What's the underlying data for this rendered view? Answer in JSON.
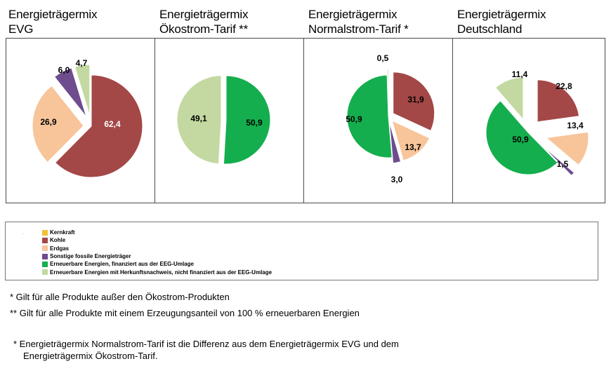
{
  "colors": {
    "Kernkraft": "#f1c232",
    "Kohle": "#a44747",
    "Erdgas": "#f8c49a",
    "Sonstige": "#6e4c8e",
    "EEG": "#14ae4e",
    "Herkunft": "#c3d9a1"
  },
  "legend": [
    {
      "key": "Kernkraft",
      "label": "Kernkraft"
    },
    {
      "key": "Kohle",
      "label": "Kohle"
    },
    {
      "key": "Erdgas",
      "label": "Erdgas"
    },
    {
      "key": "Sonstige",
      "label": "Sonstige fossile Energieträger"
    },
    {
      "key": "EEG",
      "label": "Erneuerbare Energien, finanziert aus der EEG-Umlage"
    },
    {
      "key": "Herkunft",
      "label": "Erneuerbare Energien mit Herkunftsnachweis, nicht finanziert aus der EEG-Umlage"
    }
  ],
  "legend_mark": ".",
  "notes": {
    "n1": "* Gilt für alle Produkte außer den Ökostrom-Produkten",
    "n2": "** Gilt für alle Produkte mit einem Erzeugungsanteil von 100 % erneuerbaren Energien",
    "n3a": "* Energieträgermix Normalstrom-Tarif ist die Differenz aus dem Energieträgermix  EVG und dem",
    "n3b": "Energieträgermix Ökostrom-Tarif."
  },
  "chart_data": [
    {
      "type": "pie",
      "title_line1": "Energieträgermix",
      "title_line2": "EVG",
      "slices": [
        {
          "key": "Kohle",
          "value": 62.4,
          "label": "62,4"
        },
        {
          "key": "Erdgas",
          "value": 26.9,
          "label": "26,9"
        },
        {
          "key": "Sonstige",
          "value": 6.0,
          "label": "6,0"
        },
        {
          "key": "Herkunft",
          "value": 4.7,
          "label": "4,7"
        }
      ]
    },
    {
      "type": "pie",
      "title_line1": "Energieträgermix",
      "title_line2": "Ökostrom-Tarif **",
      "slices": [
        {
          "key": "EEG",
          "value": 50.9,
          "label": "50,9"
        },
        {
          "key": "Herkunft",
          "value": 49.1,
          "label": "49,1"
        }
      ]
    },
    {
      "type": "pie",
      "title_line1": "Energieträgermix",
      "title_line2": "Normalstrom-Tarif *",
      "slices": [
        {
          "key": "Kohle",
          "value": 31.9,
          "label": "31,9"
        },
        {
          "key": "Erdgas",
          "value": 13.7,
          "label": "13,7"
        },
        {
          "key": "Sonstige",
          "value": 3.0,
          "label": "3,0"
        },
        {
          "key": "EEG",
          "value": 50.9,
          "label": "50,9"
        },
        {
          "key": "Herkunft",
          "value": 0.5,
          "label": "0,5"
        }
      ]
    },
    {
      "type": "pie",
      "title_line1": "Energieträgermix",
      "title_line2": "Deutschland",
      "slices": [
        {
          "key": "Kohle",
          "value": 22.8,
          "label": "22,8"
        },
        {
          "key": "Erdgas",
          "value": 13.4,
          "label": "13,4"
        },
        {
          "key": "Sonstige",
          "value": 1.5,
          "label": "1,5"
        },
        {
          "key": "EEG",
          "value": 50.9,
          "label": "50,9"
        },
        {
          "key": "Herkunft",
          "value": 11.4,
          "label": "11,4"
        }
      ]
    }
  ]
}
